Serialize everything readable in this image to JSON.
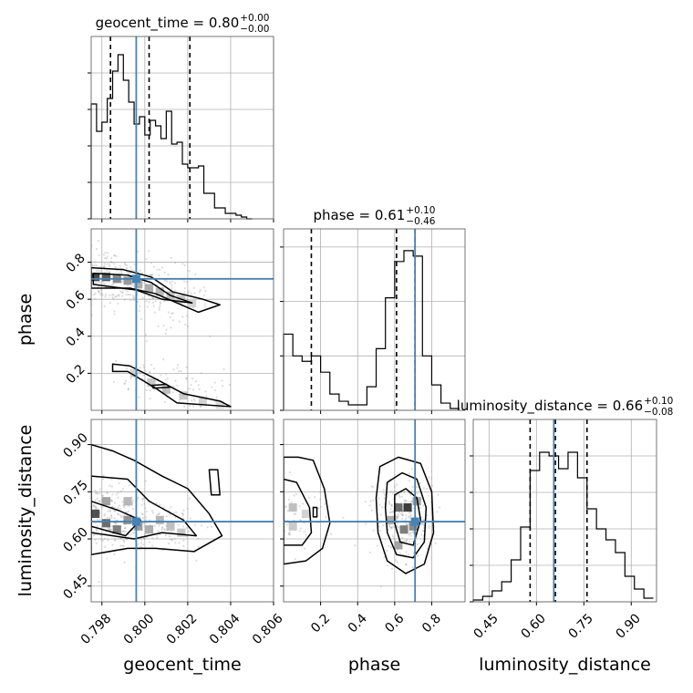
{
  "chart_data": {
    "type": "corner",
    "parameters": [
      "geocent_time",
      "phase",
      "luminosity_distance"
    ],
    "truths": {
      "geocent_time": 0.7996,
      "phase": 0.71,
      "luminosity_distance": 0.655
    },
    "titles": [
      {
        "param": "geocent_time",
        "text": "geocent_time = 0.80",
        "plus": "+0.00",
        "minus": "−0.00"
      },
      {
        "param": "phase",
        "text": "phase = 0.61",
        "plus": "+0.10",
        "minus": "−0.46"
      },
      {
        "param": "luminosity_distance",
        "text": "luminosity_distance = 0.66",
        "plus": "+0.10",
        "minus": "−0.08"
      }
    ],
    "axes": {
      "geocent_time": {
        "range": [
          0.7975,
          0.806
        ],
        "ticks": [
          "0.798",
          "0.800",
          "0.802",
          "0.804",
          "0.806"
        ],
        "tick_values": [
          0.798,
          0.8,
          0.802,
          0.804,
          0.806
        ],
        "label": "geocent_time"
      },
      "phase": {
        "range": [
          0.0,
          0.98
        ],
        "ticks": [
          "0.2",
          "0.4",
          "0.6",
          "0.8"
        ],
        "tick_values": [
          0.2,
          0.4,
          0.6,
          0.8
        ],
        "label": "phase"
      },
      "luminosity_distance": {
        "range": [
          0.4,
          0.98
        ],
        "ticks": [
          "0.45",
          "0.60",
          "0.75",
          "0.90"
        ],
        "tick_values": [
          0.45,
          0.6,
          0.75,
          0.9
        ],
        "label": "luminosity_distance"
      }
    },
    "histograms": {
      "geocent_time": {
        "bins": [
          0.7975,
          0.79775,
          0.798,
          0.79825,
          0.7985,
          0.79875,
          0.799,
          0.79925,
          0.7995,
          0.79975,
          0.8,
          0.80025,
          0.8005,
          0.80075,
          0.801,
          0.80125,
          0.8015,
          0.80175,
          0.802,
          0.80225,
          0.8025,
          0.80275,
          0.803,
          0.80325,
          0.8035,
          0.80375,
          0.804,
          0.80425,
          0.8045,
          0.80475,
          0.805
        ],
        "counts": [
          0.63,
          0.48,
          0.53,
          0.66,
          0.81,
          0.9,
          0.76,
          0.64,
          0.52,
          0.56,
          0.46,
          0.54,
          0.51,
          0.44,
          0.59,
          0.41,
          0.42,
          0.3,
          0.28,
          0.28,
          0.29,
          0.14,
          0.14,
          0.06,
          0.06,
          0.03,
          0.03,
          0.02,
          0.01,
          0.0
        ],
        "quantiles": [
          0.7984,
          0.8002,
          0.8021
        ],
        "ytick_values": [
          0,
          0.2,
          0.4,
          0.6,
          0.8
        ]
      },
      "phase": {
        "bins": [
          0.0,
          0.05,
          0.1,
          0.15,
          0.2,
          0.25,
          0.3,
          0.35,
          0.4,
          0.45,
          0.5,
          0.55,
          0.6,
          0.65,
          0.7,
          0.75,
          0.8,
          0.85,
          0.9,
          0.95
        ],
        "counts": [
          0.42,
          0.3,
          0.27,
          0.3,
          0.21,
          0.09,
          0.05,
          0.03,
          0.03,
          0.13,
          0.34,
          0.62,
          0.82,
          0.88,
          0.85,
          0.3,
          0.14,
          0.04,
          0.01
        ],
        "quantiles": [
          0.15,
          0.61,
          0.71
        ],
        "ytick_values": [
          0,
          0.3,
          0.6,
          0.9
        ]
      },
      "luminosity_distance": {
        "bins": [
          0.4,
          0.43,
          0.46,
          0.49,
          0.52,
          0.55,
          0.58,
          0.61,
          0.64,
          0.67,
          0.7,
          0.73,
          0.76,
          0.79,
          0.82,
          0.85,
          0.88,
          0.91,
          0.94,
          0.97
        ],
        "counts": [
          0.01,
          0.03,
          0.06,
          0.11,
          0.23,
          0.41,
          0.72,
          0.82,
          0.8,
          0.73,
          0.82,
          0.68,
          0.51,
          0.4,
          0.34,
          0.27,
          0.14,
          0.07,
          0.02
        ],
        "quantiles": [
          0.58,
          0.66,
          0.76
        ],
        "ytick_values": [
          0,
          0.2,
          0.4,
          0.6,
          0.8
        ]
      }
    },
    "pairs": [
      {
        "x": "geocent_time",
        "y": "phase",
        "contours": [
          [
            [
              0.7975,
              0.77
            ],
            [
              0.799,
              0.76
            ],
            [
              0.8003,
              0.72
            ],
            [
              0.8013,
              0.64
            ],
            [
              0.8027,
              0.6
            ],
            [
              0.8035,
              0.57
            ],
            [
              0.8025,
              0.53
            ],
            [
              0.8005,
              0.63
            ],
            [
              0.7993,
              0.66
            ],
            [
              0.7975,
              0.66
            ]
          ],
          [
            [
              0.7976,
              0.74
            ],
            [
              0.7992,
              0.73
            ],
            [
              0.8003,
              0.69
            ],
            [
              0.8012,
              0.62
            ],
            [
              0.8022,
              0.58
            ],
            [
              0.8008,
              0.6
            ],
            [
              0.7996,
              0.65
            ],
            [
              0.7976,
              0.68
            ]
          ],
          [
            [
              0.7985,
              0.25
            ],
            [
              0.7993,
              0.24
            ],
            [
              0.8005,
              0.17
            ],
            [
              0.8018,
              0.09
            ],
            [
              0.8035,
              0.05
            ],
            [
              0.804,
              0.02
            ],
            [
              0.8015,
              0.04
            ],
            [
              0.8005,
              0.12
            ],
            [
              0.7992,
              0.21
            ],
            [
              0.7985,
              0.21
            ]
          ],
          [
            [
              0.8003,
              0.135
            ],
            [
              0.801,
              0.14
            ],
            [
              0.8012,
              0.125
            ],
            [
              0.8004,
              0.12
            ]
          ]
        ],
        "density": [
          [
            0.7977,
            0.72,
            0.9
          ],
          [
            0.7982,
            0.72,
            0.8
          ],
          [
            0.7987,
            0.71,
            0.55
          ],
          [
            0.7992,
            0.7,
            0.45
          ],
          [
            0.7997,
            0.68,
            0.35
          ],
          [
            0.8002,
            0.66,
            0.35
          ],
          [
            0.8007,
            0.64,
            0.3
          ],
          [
            0.8012,
            0.62,
            0.25
          ],
          [
            0.8017,
            0.6,
            0.2
          ],
          [
            0.8022,
            0.58,
            0.15
          ],
          [
            0.7995,
            0.2,
            0.15
          ],
          [
            0.8003,
            0.15,
            0.2
          ],
          [
            0.801,
            0.11,
            0.25
          ],
          [
            0.8018,
            0.08,
            0.2
          ],
          [
            0.8027,
            0.05,
            0.15
          ],
          [
            0.8035,
            0.03,
            0.1
          ]
        ]
      },
      {
        "x": "geocent_time",
        "y": "luminosity_distance",
        "contours": [
          [
            [
              0.7975,
              0.9
            ],
            [
              0.7985,
              0.88
            ],
            [
              0.7995,
              0.85
            ],
            [
              0.8008,
              0.8
            ],
            [
              0.802,
              0.76
            ],
            [
              0.803,
              0.68
            ],
            [
              0.8036,
              0.61
            ],
            [
              0.8023,
              0.56
            ],
            [
              0.8005,
              0.57
            ],
            [
              0.7992,
              0.57
            ],
            [
              0.7975,
              0.55
            ]
          ],
          [
            [
              0.7975,
              0.8
            ],
            [
              0.7992,
              0.79
            ],
            [
              0.8002,
              0.72
            ],
            [
              0.8018,
              0.66
            ],
            [
              0.8024,
              0.61
            ],
            [
              0.8008,
              0.62
            ],
            [
              0.7995,
              0.6
            ],
            [
              0.7975,
              0.62
            ]
          ],
          [
            [
              0.7975,
              0.72
            ],
            [
              0.7988,
              0.69
            ],
            [
              0.7998,
              0.66
            ],
            [
              0.7991,
              0.61
            ],
            [
              0.7975,
              0.64
            ]
          ],
          [
            [
              0.803,
              0.82
            ],
            [
              0.8034,
              0.82
            ],
            [
              0.8035,
              0.74
            ],
            [
              0.8031,
              0.74
            ]
          ]
        ],
        "density": [
          [
            0.7977,
            0.68,
            0.85
          ],
          [
            0.7982,
            0.65,
            0.7
          ],
          [
            0.7987,
            0.63,
            0.6
          ],
          [
            0.7992,
            0.66,
            0.5
          ],
          [
            0.7997,
            0.64,
            0.45
          ],
          [
            0.8002,
            0.63,
            0.35
          ],
          [
            0.8007,
            0.66,
            0.3
          ],
          [
            0.8012,
            0.64,
            0.25
          ],
          [
            0.8017,
            0.62,
            0.2
          ],
          [
            0.7982,
            0.72,
            0.4
          ],
          [
            0.7992,
            0.72,
            0.3
          ]
        ]
      },
      {
        "x": "phase",
        "y": "luminosity_distance",
        "contours": [
          [
            [
              0.0,
              0.86
            ],
            [
              0.08,
              0.86
            ],
            [
              0.16,
              0.85
            ],
            [
              0.22,
              0.76
            ],
            [
              0.25,
              0.65
            ],
            [
              0.21,
              0.57
            ],
            [
              0.12,
              0.53
            ],
            [
              0.0,
              0.52
            ]
          ],
          [
            [
              0.0,
              0.79
            ],
            [
              0.07,
              0.78
            ],
            [
              0.14,
              0.7
            ],
            [
              0.15,
              0.62
            ],
            [
              0.1,
              0.58
            ],
            [
              0.0,
              0.58
            ]
          ],
          [
            [
              0.52,
              0.83
            ],
            [
              0.62,
              0.86
            ],
            [
              0.74,
              0.84
            ],
            [
              0.8,
              0.75
            ],
            [
              0.81,
              0.62
            ],
            [
              0.76,
              0.52
            ],
            [
              0.66,
              0.49
            ],
            [
              0.56,
              0.53
            ],
            [
              0.51,
              0.62
            ],
            [
              0.5,
              0.73
            ]
          ],
          [
            [
              0.56,
              0.78
            ],
            [
              0.64,
              0.81
            ],
            [
              0.72,
              0.79
            ],
            [
              0.77,
              0.7
            ],
            [
              0.76,
              0.59
            ],
            [
              0.7,
              0.54
            ],
            [
              0.61,
              0.55
            ],
            [
              0.56,
              0.62
            ],
            [
              0.55,
              0.7
            ]
          ],
          [
            [
              0.6,
              0.74
            ],
            [
              0.66,
              0.76
            ],
            [
              0.72,
              0.73
            ],
            [
              0.74,
              0.66
            ],
            [
              0.7,
              0.58
            ],
            [
              0.63,
              0.59
            ],
            [
              0.6,
              0.65
            ]
          ],
          [
            [
              0.16,
              0.7
            ],
            [
              0.18,
              0.7
            ],
            [
              0.18,
              0.67
            ],
            [
              0.16,
              0.67
            ]
          ]
        ],
        "density": [
          [
            0.62,
            0.7,
            0.7
          ],
          [
            0.67,
            0.7,
            0.95
          ],
          [
            0.65,
            0.63,
            0.6
          ],
          [
            0.7,
            0.64,
            0.55
          ],
          [
            0.62,
            0.58,
            0.4
          ],
          [
            0.58,
            0.66,
            0.35
          ],
          [
            0.72,
            0.72,
            0.4
          ],
          [
            0.05,
            0.7,
            0.25
          ],
          [
            0.05,
            0.64,
            0.2
          ],
          [
            0.12,
            0.68,
            0.15
          ]
        ]
      }
    ]
  }
}
